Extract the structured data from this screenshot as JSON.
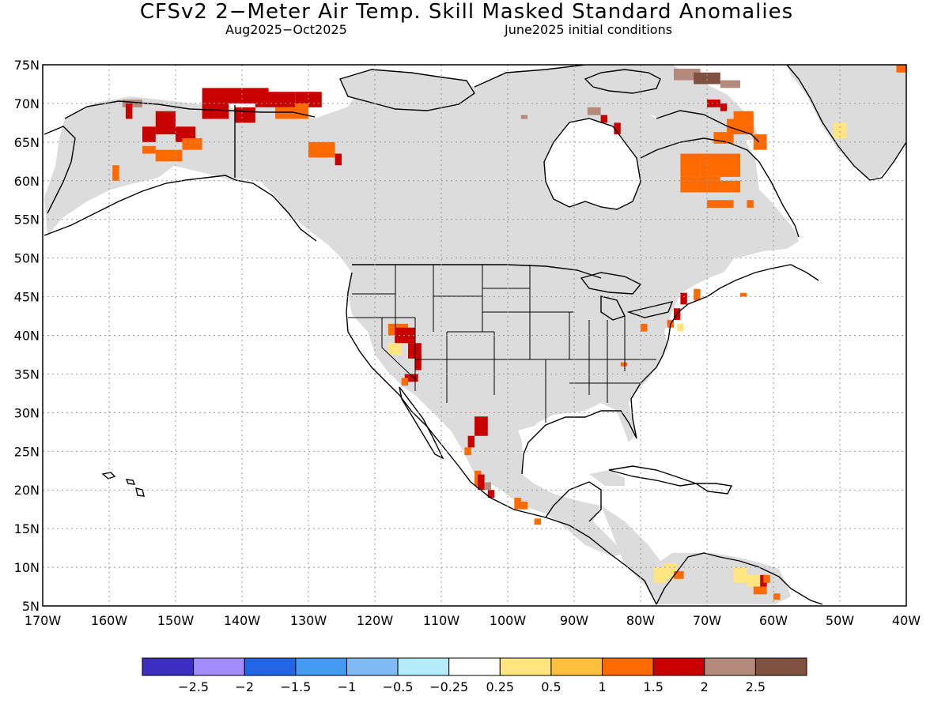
{
  "title": "CFSv2 2−Meter Air Temp. Skill Masked Standard Anomalies",
  "subtitle_period": "Aug2025−Oct2025",
  "subtitle_init": "June2025 initial conditions",
  "map": {
    "lon_range": [
      -170,
      -40
    ],
    "lat_range": [
      5,
      75
    ],
    "lat_ticks": [
      "75N",
      "70N",
      "65N",
      "60N",
      "55N",
      "50N",
      "45N",
      "40N",
      "35N",
      "30N",
      "25N",
      "20N",
      "15N",
      "10N",
      "5N"
    ],
    "lon_ticks": [
      "170W",
      "160W",
      "150W",
      "140W",
      "130W",
      "120W",
      "110W",
      "100W",
      "90W",
      "80W",
      "70W",
      "60W",
      "50W",
      "40W"
    ],
    "mask_color": "#dcdcdc",
    "coast_color": "#000000",
    "grid_style": "dotted"
  },
  "colorbar": {
    "colors": [
      "#3c2ec0",
      "#a08cff",
      "#2266e6",
      "#4499f0",
      "#7fbaf5",
      "#b5ecfb",
      "#ffffff",
      "#ffe57f",
      "#ffbe3c",
      "#ff6a00",
      "#c80000",
      "#b48a7c",
      "#805040"
    ],
    "labels": [
      "−2.5",
      "−2",
      "−1.5",
      "−1",
      "−0.5",
      "−0.25",
      "0.25",
      "0.5",
      "1",
      "1.5",
      "2",
      "2.5"
    ]
  },
  "anomaly_legend": {
    "levels": {
      "y": "#ffe57f",
      "o": "#ffbe3c",
      "r": "#ff6a00",
      "d": "#c80000",
      "b": "#b48a7c",
      "k": "#805040"
    }
  }
}
